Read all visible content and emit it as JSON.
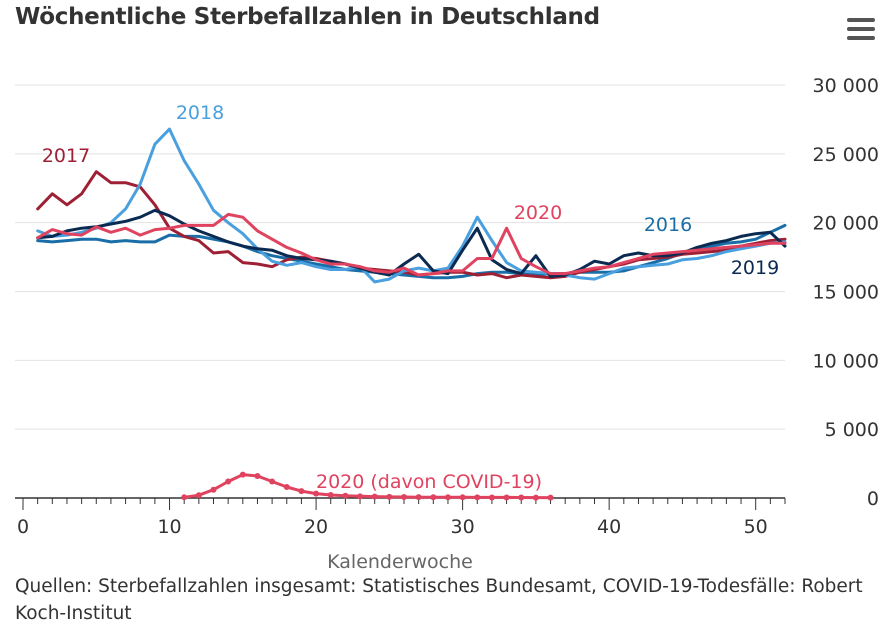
{
  "title": "Wöchentliche Sterbefallzahlen in Deutschland",
  "menu_icon": "hamburger-menu-icon",
  "source": "Quellen: Sterbefallzahlen insgesamt: Statistisches Bundesamt, COVID-19-Todesfälle: Robert Koch-Institut",
  "chart_data": {
    "type": "line",
    "title": "Wöchentliche Sterbefallzahlen in Deutschland",
    "xlabel": "Kalenderwoche",
    "ylabel": "",
    "xlim": [
      0,
      52
    ],
    "ylim": [
      0,
      30000
    ],
    "y_ticks": [
      0,
      5000,
      10000,
      15000,
      20000,
      25000,
      30000
    ],
    "y_tick_labels": [
      "0",
      "5 000",
      "10 000",
      "15 000",
      "20 000",
      "25 000",
      "30 000"
    ],
    "x_ticks": [
      0,
      10,
      20,
      30,
      40,
      50
    ],
    "x_tick_labels": [
      "0",
      "10",
      "20",
      "30",
      "40",
      "50"
    ],
    "grid": "horizontal",
    "series": [
      {
        "name": "2016",
        "color": "#1a6ea8",
        "start_week": 1,
        "values": [
          18700,
          18600,
          18700,
          18800,
          18800,
          18600,
          18700,
          18600,
          18600,
          19100,
          19000,
          19000,
          18800,
          18600,
          18300,
          17900,
          17600,
          17400,
          17200,
          17000,
          16800,
          16600,
          16500,
          16400,
          16300,
          16200,
          16100,
          16000,
          16000,
          16100,
          16300,
          16400,
          16400,
          16300,
          16200,
          16300,
          16300,
          16400,
          16400,
          16400,
          16500,
          16800,
          17100,
          17400,
          17800,
          18200,
          18300,
          18500,
          18600,
          18800,
          19300,
          19800
        ]
      },
      {
        "name": "2017",
        "color": "#9e2035",
        "start_week": 1,
        "values": [
          21000,
          22100,
          21300,
          22100,
          23700,
          22900,
          22900,
          22600,
          21300,
          19600,
          19000,
          18700,
          17800,
          17900,
          17100,
          17000,
          16800,
          17300,
          17500,
          17400,
          17200,
          17000,
          16700,
          16600,
          16500,
          16400,
          16200,
          16300,
          16400,
          16400,
          16200,
          16300,
          16000,
          16200,
          16100,
          16000,
          16100,
          16400,
          16600,
          16800,
          17000,
          17300,
          17400,
          17500,
          17700,
          17800,
          17900,
          18000,
          18300,
          18500,
          18700,
          18800
        ]
      },
      {
        "name": "2018",
        "color": "#4aa0de",
        "start_week": 1,
        "values": [
          19400,
          19000,
          19100,
          19300,
          19600,
          20000,
          21000,
          22800,
          25700,
          26800,
          24500,
          22800,
          20900,
          20000,
          19200,
          18100,
          17200,
          16900,
          17100,
          16800,
          16600,
          16600,
          16800,
          15700,
          15900,
          16500,
          16700,
          16500,
          16700,
          18300,
          20400,
          18700,
          17100,
          16500,
          16400,
          16300,
          16200,
          16000,
          15900,
          16300,
          16700,
          16800,
          16900,
          17000,
          17300,
          17400,
          17600,
          17900,
          18100,
          18300,
          18500,
          18600
        ]
      },
      {
        "name": "2019",
        "color": "#0b2a52",
        "start_week": 1,
        "values": [
          18900,
          19000,
          19400,
          19600,
          19700,
          19900,
          20100,
          20400,
          20900,
          20500,
          19900,
          19400,
          19000,
          18600,
          18300,
          18100,
          18000,
          17600,
          17400,
          17300,
          17200,
          17000,
          16700,
          16400,
          16200,
          17000,
          17700,
          16500,
          16300,
          18000,
          19600,
          17300,
          16600,
          16300,
          17600,
          16100,
          16200,
          16600,
          17200,
          17000,
          17600,
          17800,
          17600,
          17600,
          17800,
          18200,
          18500,
          18700,
          19000,
          19200,
          19300,
          18300
        ]
      },
      {
        "name": "2020",
        "color": "#e0435f",
        "start_week": 1,
        "values": [
          18900,
          19500,
          19200,
          19100,
          19700,
          19300,
          19600,
          19100,
          19500,
          19600,
          19800,
          19800,
          19800,
          20600,
          20400,
          19400,
          18800,
          18200,
          17800,
          17300,
          17000,
          17000,
          16800,
          16500,
          16400,
          16700,
          16200,
          16300,
          16500,
          16500,
          17400,
          17400,
          19600,
          17400,
          16800,
          16300,
          16300,
          16500,
          16700,
          16800,
          17100,
          17400,
          17700,
          17800,
          17900,
          18000,
          18100,
          18200,
          18300,
          18400,
          18500,
          18500
        ]
      },
      {
        "name": "2020 (davon COVID-19)",
        "color": "#e0435f",
        "start_week": 11,
        "markers": true,
        "values": [
          50,
          200,
          600,
          1200,
          1700,
          1600,
          1200,
          800,
          500,
          320,
          220,
          160,
          120,
          100,
          80,
          70,
          60,
          55,
          50,
          50,
          45,
          40,
          40,
          35,
          30,
          30
        ]
      }
    ]
  }
}
